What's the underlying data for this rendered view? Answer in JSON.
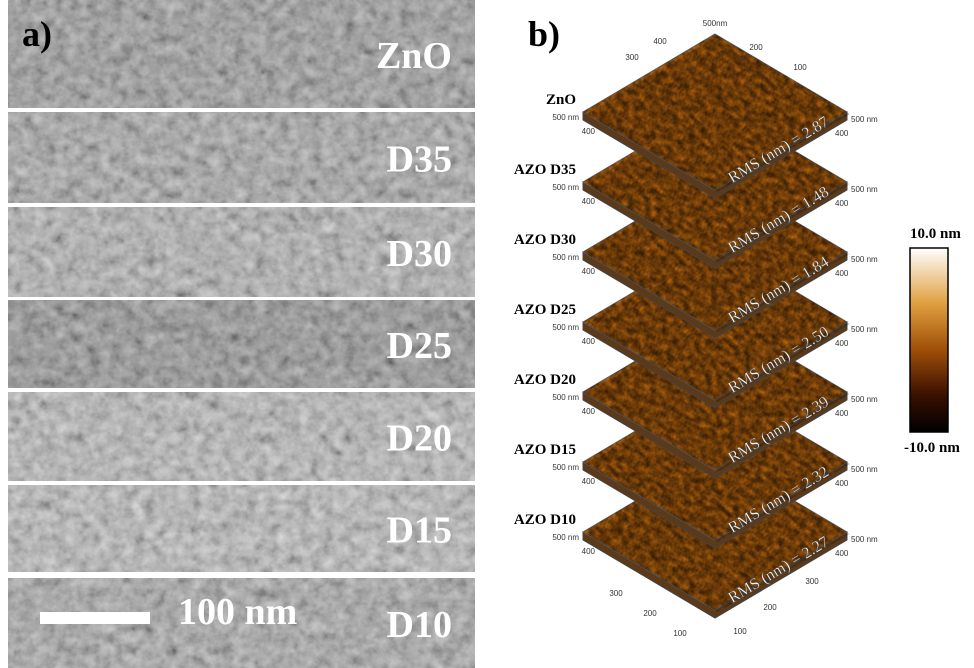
{
  "panel_a": {
    "label": "a)",
    "strips": [
      "ZnO",
      "D35",
      "D30",
      "D25",
      "D20",
      "D15",
      "D10"
    ],
    "scale_bar": "100 nm"
  },
  "panel_b": {
    "label": "b)",
    "top_ticks": [
      "500nm",
      "400",
      "300",
      "200",
      "100"
    ],
    "plates": [
      {
        "sample": "ZnO",
        "rms": "RMS (nm) = 2.87",
        "ticks": [
          "500 nm",
          "400",
          "500 nm",
          "400"
        ]
      },
      {
        "sample": "AZO D35",
        "rms": "RMS (nm) = 1.48",
        "ticks": [
          "500 nm",
          "400",
          "500 nm",
          "400"
        ]
      },
      {
        "sample": "AZO D30",
        "rms": "RMS (nm) = 1.84",
        "ticks": [
          "500 nm",
          "400",
          "500 nm",
          "400"
        ]
      },
      {
        "sample": "AZO D25",
        "rms": "RMS (nm) = 2.50",
        "ticks": [
          "500 nm",
          "400",
          "500 nm",
          "400"
        ]
      },
      {
        "sample": "AZO D20",
        "rms": "RMS (nm) = 2.39",
        "ticks": [
          "500 nm",
          "400",
          "500 nm",
          "400"
        ]
      },
      {
        "sample": "AZO D15",
        "rms": "RMS (nm) = 2.32",
        "ticks": [
          "500 nm",
          "400",
          "500 nm",
          "400"
        ]
      },
      {
        "sample": "AZO D10",
        "rms": "RMS (nm) = 2.27",
        "ticks": [
          "500 nm",
          "400",
          "500 nm",
          "400"
        ]
      }
    ],
    "bottom_ticks": [
      "300",
      "200",
      "100",
      "300",
      "200",
      "100"
    ],
    "colorbar": {
      "max": "10.0 nm",
      "min": "-10.0 nm"
    }
  }
}
